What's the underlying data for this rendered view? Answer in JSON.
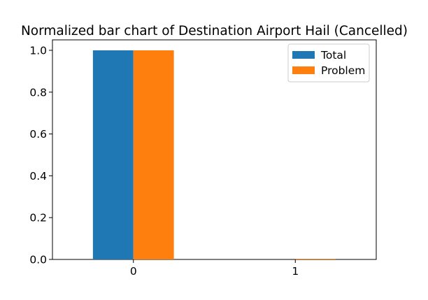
{
  "chart_data": {
    "type": "bar",
    "title": "Normalized bar chart of Destination Airport Hail (Cancelled)",
    "xlabel": "",
    "ylabel": "",
    "categories": [
      "0",
      "1"
    ],
    "series": [
      {
        "name": "Total",
        "values": [
          1.0,
          0.0
        ],
        "color": "#1f77b4"
      },
      {
        "name": "Problem",
        "values": [
          1.0,
          0.003
        ],
        "color": "#ff7f0e"
      }
    ],
    "ylim": [
      0,
      1.05
    ],
    "yticks": [
      0.0,
      0.2,
      0.4,
      0.6,
      0.8,
      1.0
    ],
    "ytick_labels": [
      "0.0",
      "0.2",
      "0.4",
      "0.6",
      "0.8",
      "1.0"
    ],
    "grid": false,
    "legend_position": "upper-right"
  }
}
